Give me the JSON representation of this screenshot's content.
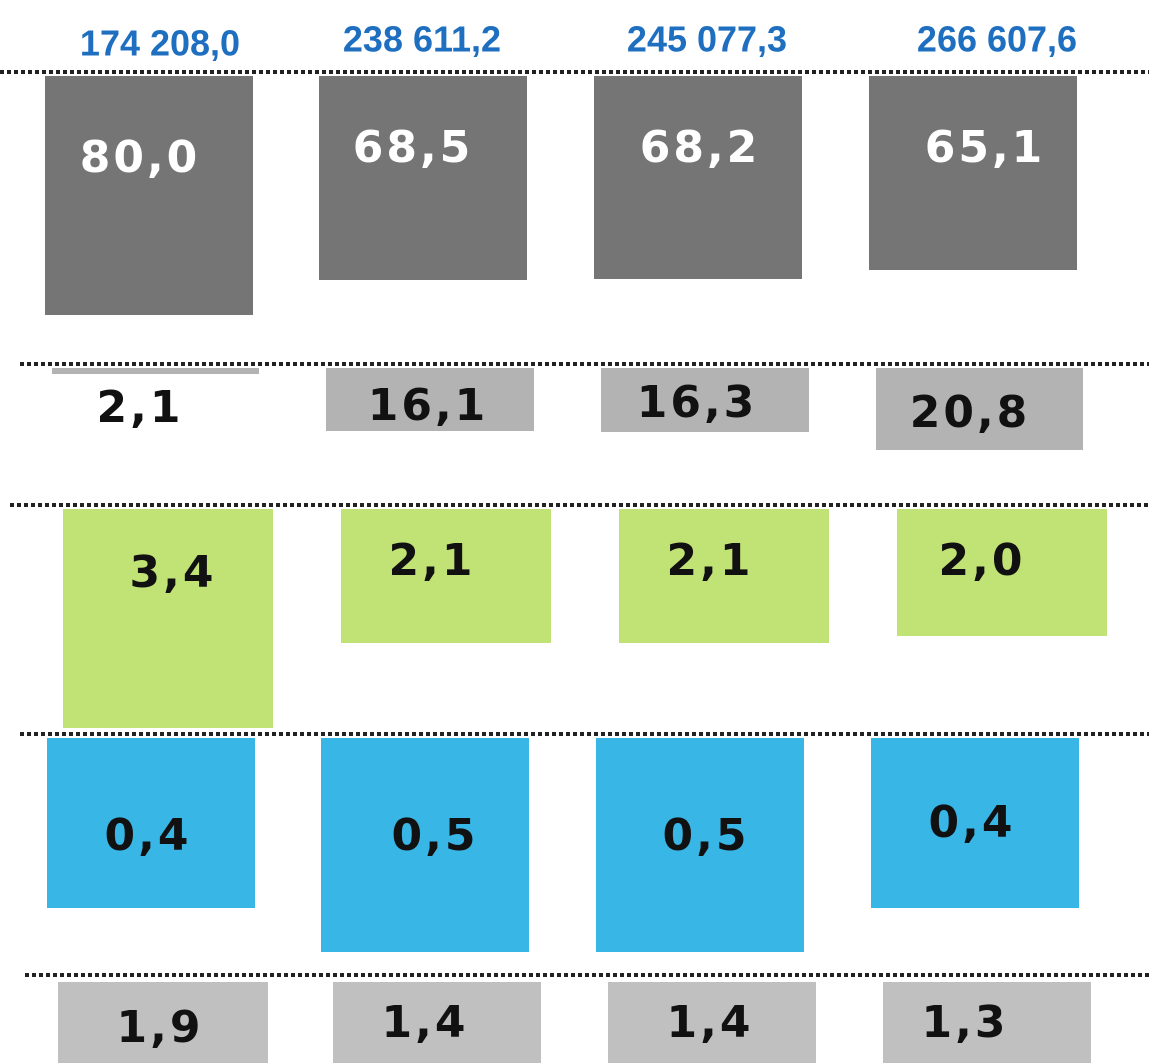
{
  "totals": [
    "174 208,0",
    "238 611,2",
    "245 077,3",
    "266 607,6"
  ],
  "rows": [
    {
      "labels": [
        "80,0",
        "68,5",
        "68,2",
        "65,1"
      ]
    },
    {
      "labels": [
        "2,1",
        "16,1",
        "16,3",
        "20,8"
      ]
    },
    {
      "labels": [
        "3,4",
        "2,1",
        "2,1",
        "2,0"
      ]
    },
    {
      "labels": [
        "0,4",
        "0,5",
        "0,5",
        "0,4"
      ]
    },
    {
      "labels": [
        "1,9",
        "1,4",
        "1,4",
        "1,3"
      ]
    }
  ]
}
